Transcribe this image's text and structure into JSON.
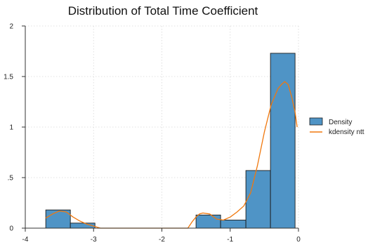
{
  "chart_data": {
    "type": "bar",
    "title": "Distribution of Total Time Coefficient",
    "xlabel": "",
    "ylabel": "",
    "xlim": [
      -4,
      0
    ],
    "ylim": [
      0,
      2
    ],
    "x_ticks": [
      "-4",
      "-3",
      "-2",
      "-1",
      "0"
    ],
    "y_ticks": [
      "0",
      ".5",
      "1",
      "1.5",
      "2"
    ],
    "grid": true,
    "legend_position": "right",
    "colors": {
      "bar_fill": "#4f94c6",
      "bar_edge": "#1c1c1c",
      "kde": "#f0780e",
      "grid": "#d8d8d8"
    },
    "series": [
      {
        "name": "Density",
        "kind": "histogram",
        "bins": [
          {
            "x0": -3.7,
            "x1": -3.34,
            "value": 0.18
          },
          {
            "x0": -3.34,
            "x1": -2.98,
            "value": 0.05
          },
          {
            "x0": -1.5,
            "x1": -1.14,
            "value": 0.13
          },
          {
            "x0": -1.14,
            "x1": -0.77,
            "value": 0.08
          },
          {
            "x0": -0.77,
            "x1": -0.41,
            "value": 0.57
          },
          {
            "x0": -0.41,
            "x1": -0.05,
            "value": 1.73
          }
        ]
      },
      {
        "name": "kdensity ntt",
        "kind": "line",
        "x": [
          -3.7,
          -3.6,
          -3.5,
          -3.4,
          -3.3,
          -3.2,
          -3.1,
          -3.0,
          -2.9,
          -2.5,
          -2.0,
          -1.62,
          -1.55,
          -1.5,
          -1.45,
          -1.4,
          -1.3,
          -1.2,
          -1.1,
          -1.0,
          -0.9,
          -0.8,
          -0.7,
          -0.6,
          -0.5,
          -0.4,
          -0.35,
          -0.3,
          -0.25,
          -0.2,
          -0.15,
          -0.1,
          -0.05,
          -0.02
        ],
        "y": [
          0.1,
          0.14,
          0.17,
          0.16,
          0.11,
          0.07,
          0.04,
          0.02,
          0.0,
          0.0,
          0.0,
          0.0,
          0.07,
          0.11,
          0.14,
          0.15,
          0.14,
          0.09,
          0.08,
          0.11,
          0.16,
          0.22,
          0.35,
          0.62,
          0.95,
          1.22,
          1.3,
          1.38,
          1.42,
          1.45,
          1.42,
          1.3,
          1.15,
          1.0
        ]
      }
    ]
  }
}
